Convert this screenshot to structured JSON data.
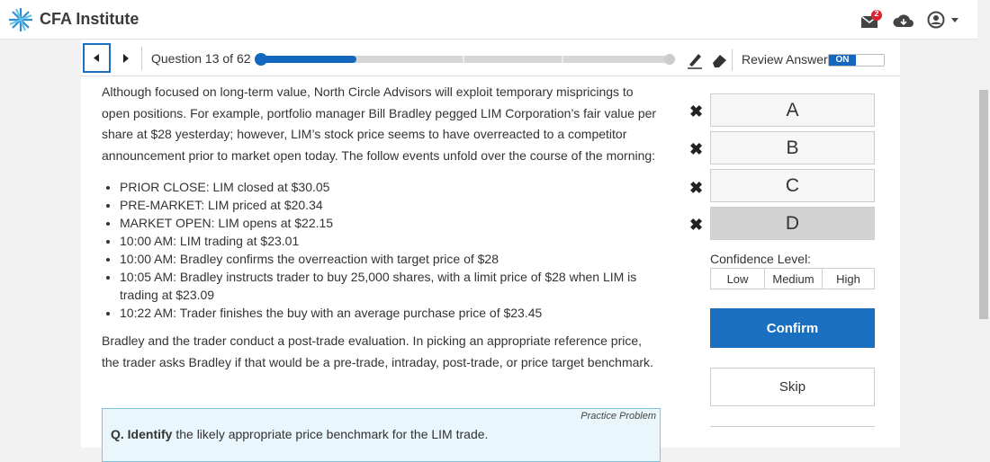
{
  "header": {
    "logo_text": "CFA Institute",
    "mail_badge": "2"
  },
  "nav": {
    "question_label": "Question 13 of 62",
    "review_label": "Review Answer",
    "toggle": "ON"
  },
  "passage": {
    "intro": "Although focused on long-term value, North Circle Advisors will exploit temporary mispricings to open positions. For example, portfolio manager Bill Bradley pegged LIM Corporation’s fair value per share at $28 yesterday; however, LIM’s stock price seems to have overreacted to a competitor announcement prior to market open today. The follow events unfold over the course of the morning:",
    "bullets": [
      "PRIOR CLOSE: LIM closed at $30.05",
      "PRE-MARKET: LIM priced at $20.34",
      "MARKET OPEN: LIM opens at $22.15",
      "10:00 AM: LIM trading at $23.01",
      "10:00 AM: Bradley confirms the overreaction with target price of $28",
      "10:05 AM: Bradley instructs trader to buy 25,000 shares, with a limit price of $28 when LIM is trading at $23.09",
      "10:22 AM: Trader finishes the buy with an average purchase price of $23.45"
    ],
    "closing": "Bradley and the trader conduct a post-trade evaluation. In picking an appropriate reference price, the trader asks Bradley if that would be a pre-trade, intraday, post-trade, or price target benchmark."
  },
  "question": {
    "tag": "Practice Problem",
    "lead": "Q. Identify",
    "text": "the likely appropriate price benchmark for the LIM trade."
  },
  "choices": [
    "A",
    "B",
    "C",
    "D"
  ],
  "confidence": {
    "label": "Confidence Level:",
    "levels": [
      "Low",
      "Medium",
      "High"
    ]
  },
  "buttons": {
    "confirm": "Confirm",
    "skip": "Skip"
  }
}
